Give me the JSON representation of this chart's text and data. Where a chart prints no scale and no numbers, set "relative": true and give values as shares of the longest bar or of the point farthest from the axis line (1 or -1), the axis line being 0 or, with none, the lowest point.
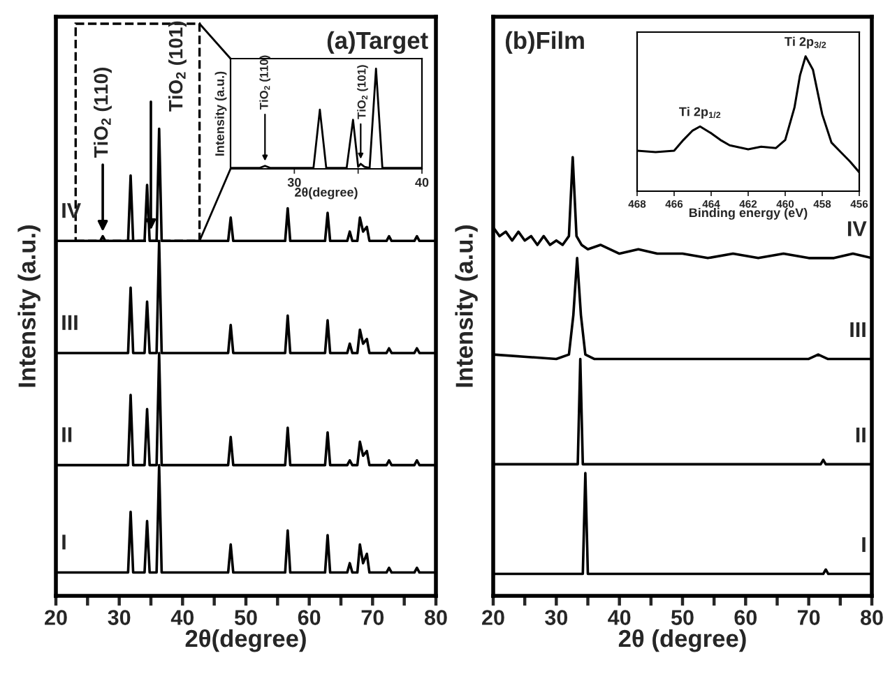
{
  "chart_data": [
    {
      "type": "line",
      "title": "(a)Target",
      "xlabel": "2θ(degree)",
      "ylabel": "Intensity (a.u.)",
      "relative": true,
      "tick_labels": "x",
      "xlim": [
        20,
        80
      ],
      "xticks": [
        20,
        {
          "value": 25,
          "label": null
        },
        30,
        {
          "value": 35,
          "label": null
        },
        40,
        {
          "value": 45,
          "label": null
        },
        50,
        {
          "value": 55,
          "label": null
        },
        60,
        {
          "value": 65,
          "label": null
        },
        70,
        {
          "value": 75,
          "label": null
        },
        80
      ],
      "annotations": [
        {
          "text": "TiO$_{2}$ (110)",
          "x": 27.4,
          "y": 0.77
        },
        "TiO$_{2}$ (101)"
      ],
      "series": [
        {
          "name": "IV",
          "color": "#000000",
          "x": [
            20,
            27.0,
            27.4,
            27.8,
            31.4,
            31.8,
            32.2,
            34.0,
            34.4,
            34.8,
            35.9,
            36.3,
            36.7,
            47.2,
            47.6,
            48.0,
            56.2,
            56.6,
            57.0,
            62.5,
            62.9,
            63.3,
            66.0,
            66.4,
            66.8,
            67.6,
            68.0,
            68.5,
            69.1,
            69.5,
            72.2,
            72.6,
            73.0,
            76.6,
            77.0,
            77.4,
            80
          ],
          "values": [
            0.76,
            0.76,
            0.77,
            0.76,
            0.76,
            0.9,
            0.76,
            0.76,
            0.88,
            0.76,
            0.76,
            1.0,
            0.76,
            0.76,
            0.81,
            0.76,
            0.76,
            0.83,
            0.76,
            0.76,
            0.82,
            0.76,
            0.76,
            0.78,
            0.76,
            0.76,
            0.81,
            0.78,
            0.79,
            0.76,
            0.76,
            0.77,
            0.76,
            0.76,
            0.77,
            0.76,
            0.76
          ]
        },
        {
          "name": "III",
          "color": "#000000",
          "x": [
            20,
            31.4,
            31.8,
            32.2,
            34.0,
            34.4,
            34.8,
            35.9,
            36.3,
            36.7,
            47.2,
            47.6,
            48.0,
            56.2,
            56.6,
            57.0,
            62.5,
            62.9,
            63.3,
            66.0,
            66.4,
            66.8,
            67.6,
            68.0,
            68.5,
            69.1,
            69.5,
            72.2,
            72.6,
            73.0,
            76.6,
            77.0,
            77.4,
            80
          ],
          "values": [
            0.52,
            0.52,
            0.66,
            0.52,
            0.52,
            0.63,
            0.52,
            0.52,
            0.76,
            0.52,
            0.52,
            0.58,
            0.52,
            0.52,
            0.6,
            0.52,
            0.52,
            0.59,
            0.52,
            0.52,
            0.54,
            0.52,
            0.52,
            0.57,
            0.54,
            0.55,
            0.52,
            0.52,
            0.53,
            0.52,
            0.52,
            0.53,
            0.52,
            0.52
          ]
        },
        {
          "name": "II",
          "color": "#000000",
          "x": [
            20,
            31.4,
            31.8,
            32.2,
            34.0,
            34.4,
            34.8,
            35.9,
            36.3,
            36.7,
            47.2,
            47.6,
            48.0,
            56.2,
            56.6,
            57.0,
            62.5,
            62.9,
            63.3,
            66.0,
            66.4,
            66.8,
            67.6,
            68.0,
            68.5,
            69.1,
            69.5,
            72.2,
            72.6,
            73.0,
            76.6,
            77.0,
            77.4,
            80
          ],
          "values": [
            0.28,
            0.28,
            0.43,
            0.28,
            0.28,
            0.4,
            0.28,
            0.28,
            0.52,
            0.28,
            0.28,
            0.34,
            0.28,
            0.28,
            0.36,
            0.28,
            0.28,
            0.35,
            0.28,
            0.28,
            0.29,
            0.28,
            0.28,
            0.33,
            0.3,
            0.31,
            0.28,
            0.28,
            0.29,
            0.28,
            0.28,
            0.29,
            0.28,
            0.28
          ]
        },
        {
          "name": "I",
          "color": "#000000",
          "x": [
            20,
            31.4,
            31.8,
            32.2,
            34.0,
            34.4,
            34.8,
            35.9,
            36.3,
            36.7,
            47.2,
            47.6,
            48.0,
            56.2,
            56.6,
            57.0,
            62.5,
            62.9,
            63.3,
            66.0,
            66.4,
            66.8,
            67.6,
            68.0,
            68.5,
            69.1,
            69.5,
            72.2,
            72.6,
            73.0,
            76.6,
            77.0,
            77.4,
            80
          ],
          "values": [
            0.05,
            0.05,
            0.18,
            0.05,
            0.05,
            0.16,
            0.05,
            0.05,
            0.28,
            0.05,
            0.05,
            0.11,
            0.05,
            0.05,
            0.14,
            0.05,
            0.05,
            0.13,
            0.05,
            0.05,
            0.07,
            0.05,
            0.05,
            0.11,
            0.07,
            0.09,
            0.05,
            0.05,
            0.06,
            0.05,
            0.05,
            0.06,
            0.05,
            0.05
          ]
        }
      ]
    },
    {
      "type": "line",
      "xlabel": "2θ(degree)",
      "ylabel": "Intensity (a.u.)",
      "relative": true,
      "tick_labels": "x",
      "xlim": [
        25,
        40
      ],
      "xticks": [
        30,
        {
          "value": 35,
          "label": null
        },
        40
      ],
      "annotations": [
        {
          "text": "TiO$_{2}$ (110)",
          "x": 27.7,
          "y": 0.03
        },
        {
          "text": "TiO$_{2}$ (101)",
          "x": 35.2,
          "y": 0.05
        }
      ],
      "series": [
        {
          "color": "#000000",
          "x": [
            25,
            27.3,
            27.7,
            28.1,
            31.5,
            32.0,
            32.5,
            34.1,
            34.6,
            35.0,
            35.2,
            35.5,
            35.9,
            36.4,
            36.9,
            40
          ],
          "values": [
            0.01,
            0.01,
            0.03,
            0.01,
            0.01,
            0.59,
            0.01,
            0.01,
            0.49,
            0.02,
            0.05,
            0.02,
            0.01,
            1.0,
            0.01,
            0.01
          ]
        }
      ]
    },
    {
      "type": "line",
      "title": "(b)Film",
      "xlabel": "2θ (degree)",
      "ylabel": "Intensity (a.u.)",
      "relative": true,
      "tick_labels": "x",
      "xlim": [
        20,
        80
      ],
      "xticks": [
        20,
        {
          "value": 25,
          "label": null
        },
        30,
        {
          "value": 35,
          "label": null
        },
        40,
        {
          "value": 45,
          "label": null
        },
        50,
        {
          "value": 55,
          "label": null
        },
        60,
        {
          "value": 65,
          "label": null
        },
        70,
        {
          "value": 75,
          "label": null
        },
        80
      ],
      "series": [
        {
          "name": "IV",
          "color": "#000000",
          "x": [
            20,
            21,
            22,
            23,
            24,
            25,
            26,
            27,
            28,
            29,
            30,
            31,
            32,
            32.6,
            33.2,
            34,
            35,
            37,
            40,
            43,
            46,
            50,
            54,
            58,
            62,
            66,
            70,
            74,
            77,
            80
          ],
          "values": [
            0.84,
            0.82,
            0.83,
            0.81,
            0.83,
            0.81,
            0.82,
            0.8,
            0.82,
            0.8,
            0.81,
            0.8,
            0.82,
            1.0,
            0.82,
            0.8,
            0.79,
            0.8,
            0.78,
            0.79,
            0.78,
            0.78,
            0.77,
            0.78,
            0.77,
            0.78,
            0.77,
            0.77,
            0.78,
            0.77
          ]
        },
        {
          "name": "III",
          "color": "#000000",
          "x": [
            20,
            30,
            32.0,
            32.7,
            33.3,
            33.9,
            34.6,
            36,
            50,
            70,
            71.5,
            73,
            80
          ],
          "values": [
            0.55,
            0.54,
            0.55,
            0.64,
            0.77,
            0.64,
            0.55,
            0.54,
            0.54,
            0.54,
            0.55,
            0.54,
            0.54
          ]
        },
        {
          "name": "II",
          "color": "#000000",
          "x": [
            20,
            33.4,
            33.8,
            34.2,
            71.9,
            72.3,
            72.7,
            80
          ],
          "values": [
            0.3,
            0.3,
            0.54,
            0.3,
            0.3,
            0.31,
            0.3,
            0.3
          ]
        },
        {
          "name": "I",
          "color": "#000000",
          "x": [
            20,
            34.2,
            34.6,
            35.0,
            72.3,
            72.7,
            73.1,
            80
          ],
          "values": [
            0.05,
            0.05,
            0.28,
            0.05,
            0.05,
            0.06,
            0.05,
            0.05
          ]
        }
      ]
    },
    {
      "type": "line",
      "xlabel": "Binding energy (eV)",
      "relative": true,
      "tick_labels": "x",
      "xlim": [
        468,
        456
      ],
      "xticks": [
        468,
        466,
        464,
        462,
        460,
        458,
        456
      ],
      "annotations": [
        {
          "text": "Ti 2p$_{1/2}$",
          "x": 464.6,
          "y": 0.48
        },
        {
          "text": "Ti 2p$_{3/2}$",
          "x": 458.9,
          "y": 1.0
        }
      ],
      "series": [
        {
          "color": "#000000",
          "x": [
            468,
            467,
            466,
            465.5,
            465,
            464.6,
            464,
            463.5,
            463,
            462,
            461.3,
            460.5,
            460,
            459.5,
            459.2,
            458.9,
            458.5,
            458,
            457.5,
            457,
            456.5,
            456
          ],
          "values": [
            0.3,
            0.29,
            0.3,
            0.38,
            0.45,
            0.48,
            0.43,
            0.38,
            0.34,
            0.31,
            0.33,
            0.32,
            0.38,
            0.62,
            0.86,
            1.0,
            0.9,
            0.57,
            0.36,
            0.29,
            0.22,
            0.14
          ]
        }
      ]
    }
  ]
}
